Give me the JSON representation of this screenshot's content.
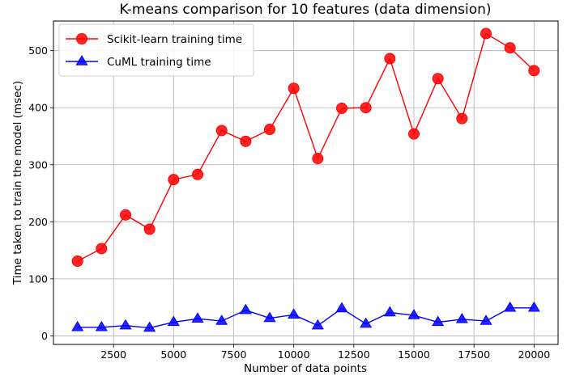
{
  "chart_data": {
    "type": "line",
    "title": "K-means comparison for 10 features (data dimension)",
    "xlabel": "Number of data points",
    "ylabel": "Time taken to train the model (msec)",
    "xlim": [
      0,
      21000
    ],
    "ylim": [
      -15,
      552
    ],
    "grid": true,
    "legend_position": "top-left",
    "x_ticks": [
      2500,
      5000,
      7500,
      10000,
      12500,
      15000,
      17500,
      20000
    ],
    "y_ticks": [
      0,
      100,
      200,
      300,
      400,
      500
    ],
    "x": [
      1000,
      2000,
      3000,
      4000,
      5000,
      6000,
      7000,
      8000,
      9000,
      10000,
      11000,
      12000,
      13000,
      14000,
      15000,
      16000,
      17000,
      18000,
      19000,
      20000
    ],
    "series": [
      {
        "name": "Scikit-learn training time",
        "color": "#ff0000",
        "marker": "circle",
        "values": [
          131,
          153,
          212,
          187,
          274,
          283,
          360,
          341,
          362,
          434,
          311,
          399,
          400,
          486,
          354,
          451,
          381,
          530,
          505,
          465
        ]
      },
      {
        "name": "CuML training time",
        "color": "#0000ff",
        "marker": "triangle",
        "values": [
          15,
          15,
          18,
          14,
          24,
          30,
          26,
          45,
          31,
          37,
          18,
          48,
          21,
          41,
          36,
          24,
          29,
          26,
          49,
          49
        ]
      }
    ]
  }
}
